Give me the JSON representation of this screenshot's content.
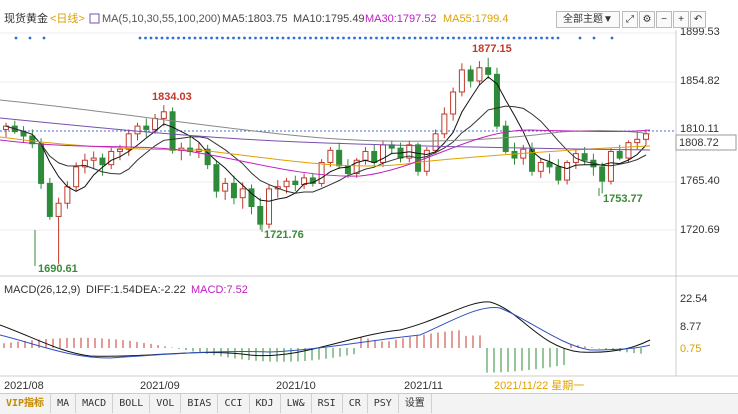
{
  "header": {
    "symbol": "现货黄金",
    "period": "<日线>",
    "ma_label": "MA(5,10,30,55,100,200)",
    "ma5": "MA5:1803.75",
    "ma10": "MA10:1795.49",
    "ma30": "MA30:1797.52",
    "ma55": "MA55:1799.4",
    "theme_button": "全部主题▼",
    "icon_buttons": [
      "expand-icon",
      "settings-icon",
      "minus-icon",
      "plus-icon",
      "arrow-icon"
    ]
  },
  "price_axis": [
    "1899.53",
    "1854.82",
    "1810.11",
    "1765.40",
    "1720.69"
  ],
  "current_price": "1808.72",
  "annotations": {
    "high1": "1834.03",
    "low1": "1690.61",
    "low2": "1721.76",
    "peak": "1877.15",
    "low3": "1753.77"
  },
  "macd": {
    "label": "MACD(26,12,9)",
    "diff": "DIFF:1.54",
    "dea": "DEA:-2.22",
    "macd": "MACD:7.52",
    "axis": [
      "22.54",
      "8.77"
    ],
    "current": "0.75"
  },
  "dates": [
    "2021/08",
    "2021/09",
    "2021/10",
    "2021/11"
  ],
  "cursor_date": "2021/11/22 星期一",
  "tabs": [
    "VIP指标",
    "MA",
    "MACD",
    "BOLL",
    "VOL",
    "BIAS",
    "CCI",
    "KDJ",
    "LW&",
    "RSI",
    "CR",
    "PSY",
    "设置"
  ],
  "chart_data": {
    "type": "candlestick",
    "title": "现货黄金 <日线>",
    "categories": [
      "2021/08",
      "2021/09",
      "2021/10",
      "2021/11"
    ],
    "ohlc": [
      [
        1812,
        1818,
        1805,
        1815
      ],
      [
        1815,
        1820,
        1808,
        1810
      ],
      [
        1810,
        1815,
        1800,
        1806
      ],
      [
        1806,
        1812,
        1795,
        1799
      ],
      [
        1799,
        1804,
        1758,
        1763
      ],
      [
        1763,
        1768,
        1730,
        1733
      ],
      [
        1733,
        1750,
        1690,
        1745
      ],
      [
        1745,
        1765,
        1740,
        1760
      ],
      [
        1760,
        1782,
        1756,
        1778
      ],
      [
        1778,
        1790,
        1772,
        1784
      ],
      [
        1784,
        1792,
        1776,
        1786
      ],
      [
        1786,
        1790,
        1770,
        1780
      ],
      [
        1780,
        1796,
        1776,
        1792
      ],
      [
        1792,
        1798,
        1784,
        1794
      ],
      [
        1794,
        1812,
        1788,
        1808
      ],
      [
        1808,
        1818,
        1802,
        1815
      ],
      [
        1815,
        1822,
        1805,
        1812
      ],
      [
        1812,
        1826,
        1808,
        1822
      ],
      [
        1822,
        1834,
        1815,
        1828
      ],
      [
        1828,
        1832,
        1790,
        1793
      ],
      [
        1793,
        1800,
        1784,
        1795
      ],
      [
        1795,
        1805,
        1788,
        1792
      ],
      [
        1792,
        1800,
        1786,
        1794
      ],
      [
        1794,
        1798,
        1776,
        1780
      ],
      [
        1780,
        1784,
        1750,
        1756
      ],
      [
        1756,
        1768,
        1748,
        1763
      ],
      [
        1763,
        1770,
        1744,
        1750
      ],
      [
        1750,
        1764,
        1740,
        1758
      ],
      [
        1758,
        1762,
        1735,
        1742
      ],
      [
        1742,
        1750,
        1721,
        1726
      ],
      [
        1726,
        1762,
        1722,
        1758
      ],
      [
        1758,
        1766,
        1750,
        1760
      ],
      [
        1760,
        1768,
        1754,
        1765
      ],
      [
        1765,
        1770,
        1756,
        1762
      ],
      [
        1762,
        1772,
        1758,
        1768
      ],
      [
        1768,
        1772,
        1760,
        1763
      ],
      [
        1763,
        1785,
        1760,
        1782
      ],
      [
        1782,
        1796,
        1778,
        1793
      ],
      [
        1793,
        1800,
        1776,
        1779
      ],
      [
        1779,
        1785,
        1768,
        1772
      ],
      [
        1772,
        1786,
        1768,
        1784
      ],
      [
        1784,
        1796,
        1780,
        1792
      ],
      [
        1792,
        1798,
        1778,
        1782
      ],
      [
        1782,
        1802,
        1778,
        1798
      ],
      [
        1798,
        1802,
        1790,
        1795
      ],
      [
        1795,
        1800,
        1782,
        1786
      ],
      [
        1786,
        1802,
        1782,
        1798
      ],
      [
        1798,
        1800,
        1770,
        1774
      ],
      [
        1774,
        1796,
        1770,
        1793
      ],
      [
        1793,
        1812,
        1790,
        1808
      ],
      [
        1808,
        1832,
        1804,
        1826
      ],
      [
        1826,
        1850,
        1820,
        1846
      ],
      [
        1846,
        1872,
        1842,
        1866
      ],
      [
        1866,
        1870,
        1850,
        1856
      ],
      [
        1856,
        1874,
        1852,
        1868
      ],
      [
        1868,
        1877,
        1858,
        1862
      ],
      [
        1862,
        1868,
        1812,
        1815
      ],
      [
        1815,
        1820,
        1790,
        1792
      ],
      [
        1792,
        1800,
        1780,
        1786
      ],
      [
        1786,
        1798,
        1780,
        1794
      ],
      [
        1794,
        1800,
        1770,
        1774
      ],
      [
        1774,
        1786,
        1768,
        1782
      ],
      [
        1782,
        1790,
        1772,
        1778
      ],
      [
        1778,
        1785,
        1762,
        1766
      ],
      [
        1766,
        1784,
        1762,
        1782
      ],
      [
        1782,
        1794,
        1776,
        1790
      ],
      [
        1790,
        1796,
        1780,
        1784
      ],
      [
        1784,
        1790,
        1770,
        1778
      ],
      [
        1778,
        1782,
        1754,
        1765
      ],
      [
        1765,
        1795,
        1762,
        1792
      ],
      [
        1792,
        1798,
        1784,
        1786
      ],
      [
        1786,
        1802,
        1782,
        1800
      ],
      [
        1800,
        1810,
        1794,
        1803
      ],
      [
        1803,
        1812,
        1798,
        1808
      ]
    ]
  }
}
